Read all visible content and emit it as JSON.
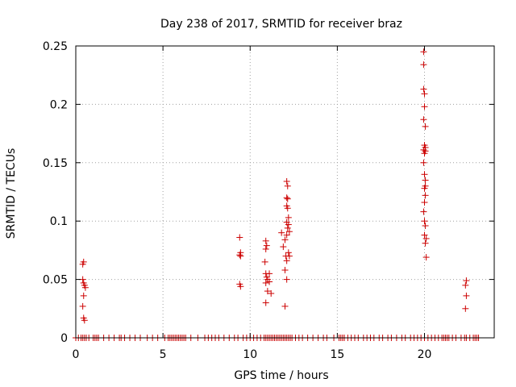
{
  "chart_data": {
    "type": "scatter",
    "title": "Day 238 of 2017, SRMTID for receiver braz",
    "xlabel": "GPS time / hours",
    "ylabel": "SRMTID / TECUs",
    "xlim": [
      0,
      24
    ],
    "ylim": [
      0,
      0.25
    ],
    "xticks": [
      "0",
      "5",
      "10",
      "15",
      "20"
    ],
    "xtick_values": [
      0,
      5,
      10,
      15,
      20
    ],
    "yticks": [
      "0",
      "0.05",
      "0.1",
      "0.15",
      "0.2",
      "0.25"
    ],
    "ytick_values": [
      0,
      0.05,
      0.1,
      0.15,
      0.2,
      0.25
    ],
    "grid": true,
    "marker": "+",
    "color": "#cc0000",
    "series": [
      {
        "name": "SRMTID",
        "points": [
          [
            0.4,
            0.063
          ],
          [
            0.45,
            0.065
          ],
          [
            0.4,
            0.05
          ],
          [
            0.45,
            0.047
          ],
          [
            0.5,
            0.045
          ],
          [
            0.55,
            0.043
          ],
          [
            0.45,
            0.036
          ],
          [
            0.4,
            0.027
          ],
          [
            0.45,
            0.017
          ],
          [
            0.5,
            0.015
          ],
          [
            9.4,
            0.086
          ],
          [
            9.45,
            0.073
          ],
          [
            9.4,
            0.071
          ],
          [
            9.45,
            0.07
          ],
          [
            9.4,
            0.046
          ],
          [
            9.45,
            0.044
          ],
          [
            10.9,
            0.083
          ],
          [
            10.95,
            0.079
          ],
          [
            10.9,
            0.076
          ],
          [
            10.85,
            0.065
          ],
          [
            10.9,
            0.055
          ],
          [
            10.95,
            0.052
          ],
          [
            11.0,
            0.05
          ],
          [
            10.9,
            0.047
          ],
          [
            11.1,
            0.055
          ],
          [
            11.0,
            0.04
          ],
          [
            11.2,
            0.038
          ],
          [
            10.9,
            0.03
          ],
          [
            11.1,
            0.048
          ],
          [
            11.8,
            0.09
          ],
          [
            11.9,
            0.078
          ],
          [
            12.0,
            0.084
          ],
          [
            12.05,
            0.07
          ],
          [
            12.1,
            0.066
          ],
          [
            12.0,
            0.058
          ],
          [
            12.1,
            0.05
          ],
          [
            12.0,
            0.027
          ],
          [
            12.1,
            0.134
          ],
          [
            12.15,
            0.13
          ],
          [
            12.1,
            0.12
          ],
          [
            12.15,
            0.119
          ],
          [
            12.1,
            0.113
          ],
          [
            12.15,
            0.111
          ],
          [
            12.2,
            0.103
          ],
          [
            12.1,
            0.099
          ],
          [
            12.2,
            0.097
          ],
          [
            12.15,
            0.094
          ],
          [
            12.25,
            0.091
          ],
          [
            12.1,
            0.088
          ],
          [
            12.25,
            0.07
          ],
          [
            12.2,
            0.073
          ],
          [
            19.95,
            0.245
          ],
          [
            19.95,
            0.234
          ],
          [
            19.95,
            0.213
          ],
          [
            20.0,
            0.209
          ],
          [
            20.0,
            0.198
          ],
          [
            19.95,
            0.187
          ],
          [
            20.05,
            0.181
          ],
          [
            20.0,
            0.165
          ],
          [
            20.05,
            0.163
          ],
          [
            19.95,
            0.161
          ],
          [
            20.0,
            0.158
          ],
          [
            20.05,
            0.16
          ],
          [
            19.95,
            0.15
          ],
          [
            20.0,
            0.14
          ],
          [
            20.05,
            0.135
          ],
          [
            20.05,
            0.13
          ],
          [
            20.0,
            0.128
          ],
          [
            20.05,
            0.122
          ],
          [
            20.0,
            0.116
          ],
          [
            19.95,
            0.108
          ],
          [
            20.0,
            0.1
          ],
          [
            20.05,
            0.096
          ],
          [
            20.0,
            0.088
          ],
          [
            20.1,
            0.085
          ],
          [
            20.05,
            0.081
          ],
          [
            20.1,
            0.069
          ],
          [
            22.4,
            0.049
          ],
          [
            22.35,
            0.045
          ],
          [
            22.4,
            0.036
          ],
          [
            22.35,
            0.025
          ]
        ],
        "zero_points_x": [
          0.0,
          0.15,
          0.3,
          0.4,
          0.5,
          0.6,
          0.75,
          1.0,
          1.1,
          1.2,
          1.3,
          1.6,
          1.9,
          2.2,
          2.5,
          2.6,
          2.8,
          3.1,
          3.4,
          3.7,
          4.1,
          4.4,
          4.7,
          5.1,
          5.3,
          5.4,
          5.5,
          5.6,
          5.7,
          5.8,
          5.9,
          6.0,
          6.1,
          6.2,
          6.3,
          6.6,
          7.0,
          7.4,
          7.6,
          7.8,
          8.0,
          8.2,
          8.5,
          8.8,
          9.1,
          9.3,
          9.6,
          9.8,
          10.0,
          10.2,
          10.4,
          10.6,
          10.8,
          10.9,
          11.0,
          11.1,
          11.2,
          11.3,
          11.4,
          11.5,
          11.6,
          11.7,
          11.8,
          11.9,
          12.0,
          12.1,
          12.2,
          12.3,
          12.4,
          12.6,
          12.8,
          13.0,
          13.3,
          13.6,
          13.9,
          14.2,
          14.4,
          14.8,
          15.1,
          15.2,
          15.3,
          15.4,
          15.6,
          15.8,
          16.0,
          16.2,
          16.5,
          16.7,
          16.9,
          17.1,
          17.4,
          17.6,
          17.9,
          18.1,
          18.4,
          18.7,
          18.9,
          19.2,
          19.4,
          19.6,
          19.8,
          20.0,
          20.2,
          20.4,
          20.6,
          20.8,
          21.0,
          21.1,
          21.2,
          21.3,
          21.4,
          21.6,
          21.8,
          22.1,
          22.3,
          22.4,
          22.6,
          22.8,
          22.9,
          23.0,
          23.1
        ]
      }
    ]
  }
}
